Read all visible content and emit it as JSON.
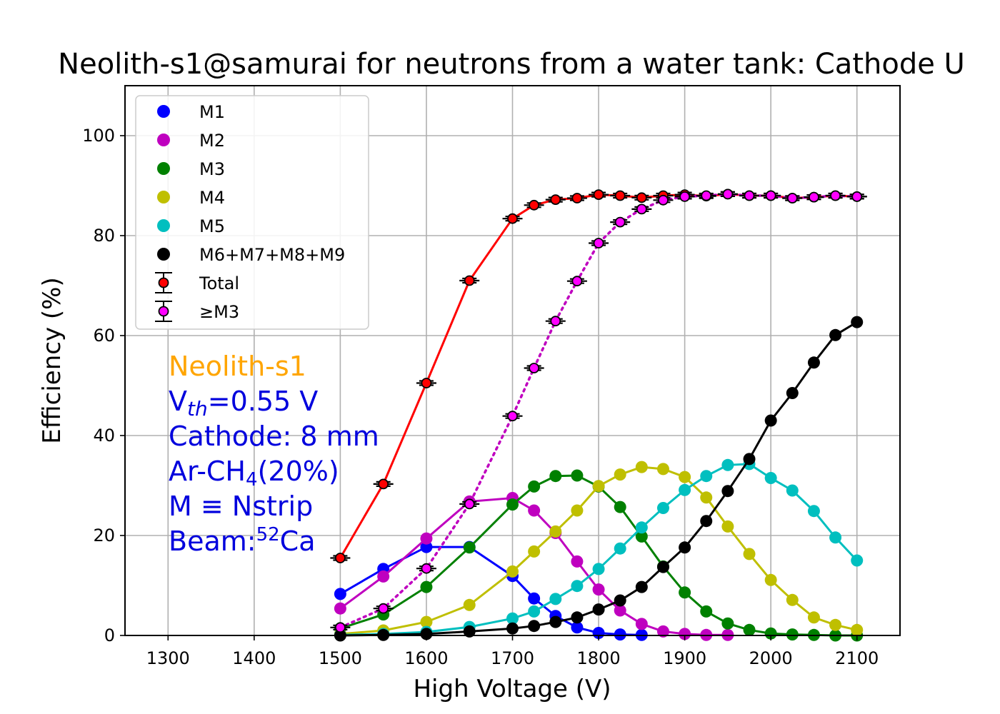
{
  "chart_data": {
    "type": "line",
    "title": "Neolith-s1@samurai for neutrons from a water tank: Cathode U",
    "xlabel": "High Voltage (V)",
    "ylabel": "Efficiency (%)",
    "xlim": [
      1250,
      2150
    ],
    "ylim": [
      0,
      110
    ],
    "x_ticks": [
      1300,
      1400,
      1500,
      1600,
      1700,
      1800,
      1900,
      2000,
      2100
    ],
    "y_ticks": [
      0,
      20,
      40,
      60,
      80,
      100
    ],
    "grid": true,
    "legend_position": "top-left",
    "series": [
      {
        "name": "M1",
        "color": "#0000ff",
        "marker": "circle",
        "line": "solid",
        "x": [
          1500,
          1550,
          1600,
          1650,
          1700,
          1725,
          1750,
          1775,
          1800,
          1825,
          1850
        ],
        "y": [
          8.3,
          13.3,
          17.7,
          17.7,
          11.9,
          7.4,
          3.9,
          1.6,
          0.5,
          0.2,
          0.1
        ]
      },
      {
        "name": "M2",
        "color": "#bf00bf",
        "marker": "circle",
        "line": "solid",
        "x": [
          1500,
          1550,
          1600,
          1650,
          1700,
          1725,
          1750,
          1775,
          1800,
          1825,
          1850,
          1875,
          1900,
          1925,
          1950
        ],
        "y": [
          5.4,
          11.8,
          19.4,
          26.8,
          27.5,
          25.0,
          20.5,
          14.8,
          9.2,
          5.0,
          2.3,
          0.8,
          0.3,
          0.1,
          0.1
        ]
      },
      {
        "name": "M3",
        "color": "#008000",
        "marker": "circle",
        "line": "solid",
        "x": [
          1500,
          1550,
          1600,
          1650,
          1700,
          1725,
          1750,
          1775,
          1800,
          1825,
          1850,
          1875,
          1900,
          1925,
          1950,
          1975,
          2000,
          2025,
          2050,
          2075,
          2100
        ],
        "y": [
          1.4,
          4.2,
          9.7,
          17.6,
          26.2,
          29.8,
          31.9,
          32.0,
          29.8,
          25.7,
          19.8,
          13.8,
          8.6,
          4.8,
          2.4,
          1.1,
          0.4,
          0.2,
          0.1,
          0.0,
          0.0
        ]
      },
      {
        "name": "M4",
        "color": "#bfbf00",
        "marker": "circle",
        "line": "solid",
        "x": [
          1500,
          1550,
          1600,
          1650,
          1700,
          1725,
          1750,
          1775,
          1800,
          1825,
          1850,
          1875,
          1900,
          1925,
          1950,
          1975,
          2000,
          2025,
          2050,
          2075,
          2100
        ],
        "y": [
          0.3,
          1.0,
          2.7,
          6.1,
          12.8,
          16.8,
          20.8,
          25.0,
          29.9,
          32.2,
          33.7,
          33.3,
          31.7,
          27.6,
          21.8,
          16.3,
          11.1,
          7.1,
          3.6,
          2.1,
          1.1
        ]
      },
      {
        "name": "M5",
        "color": "#00bfbf",
        "marker": "circle",
        "line": "solid",
        "x": [
          1500,
          1550,
          1600,
          1650,
          1700,
          1725,
          1750,
          1775,
          1800,
          1825,
          1850,
          1875,
          1900,
          1925,
          1950,
          1975,
          2000,
          2025,
          2050,
          2075,
          2100
        ],
        "y": [
          0.1,
          0.3,
          0.7,
          1.7,
          3.4,
          4.8,
          7.3,
          9.9,
          13.3,
          17.4,
          21.6,
          25.5,
          29.1,
          31.9,
          34.1,
          34.3,
          31.5,
          29.0,
          24.9,
          19.6,
          15.0
        ]
      },
      {
        "name": "M6+M7+M8+M9",
        "color": "#000000",
        "marker": "circle",
        "line": "solid",
        "x": [
          1500,
          1550,
          1600,
          1650,
          1700,
          1725,
          1750,
          1775,
          1800,
          1825,
          1850,
          1875,
          1900,
          1925,
          1950,
          1975,
          2000,
          2025,
          2050,
          2075,
          2100
        ],
        "y": [
          0.0,
          0.1,
          0.3,
          0.8,
          1.4,
          1.9,
          2.7,
          3.6,
          5.2,
          7.0,
          9.7,
          13.7,
          17.6,
          22.9,
          28.9,
          35.3,
          43.0,
          48.5,
          54.6,
          60.1,
          62.7
        ]
      },
      {
        "name": "Total",
        "color": "#ff0000",
        "edgecolor": "#000000",
        "marker": "circle",
        "line": "solid",
        "errorbars": true,
        "x": [
          1500,
          1550,
          1600,
          1650,
          1700,
          1725,
          1750,
          1775,
          1800,
          1825,
          1850,
          1875,
          1900,
          1925,
          1950,
          1975,
          2000,
          2025,
          2050,
          2075,
          2100
        ],
        "y": [
          15.5,
          30.3,
          50.5,
          71.0,
          83.4,
          86.1,
          87.2,
          87.5,
          88.2,
          88.0,
          87.6,
          88.0,
          88.2,
          87.9,
          88.3,
          88.0,
          88.0,
          87.5,
          87.7,
          88.0,
          87.8
        ]
      },
      {
        "name": "≥M3",
        "color": "#ff00ff",
        "linecolor": "#bf00bf",
        "edgecolor": "#000000",
        "marker": "circle",
        "line": "dotted",
        "errorbars": true,
        "x": [
          1500,
          1550,
          1600,
          1650,
          1700,
          1725,
          1750,
          1775,
          1800,
          1825,
          1850,
          1875,
          1900,
          1925,
          1950,
          1975,
          2000,
          2025,
          2050,
          2075,
          2100
        ],
        "y": [
          1.6,
          5.4,
          13.4,
          26.3,
          43.9,
          53.5,
          62.9,
          70.9,
          78.5,
          82.7,
          85.3,
          87.1,
          87.8,
          88.0,
          88.3,
          88.0,
          88.0,
          87.5,
          87.7,
          88.0,
          87.8
        ]
      }
    ],
    "annotation": {
      "line1": "Neolith-s1",
      "line1_color": "#ffa500",
      "color": "#0000dd",
      "vth_prefix": "V",
      "vth_sub": "th",
      "vth_suffix": "=0.55 V",
      "cathode": "Cathode: 8 mm",
      "gas_prefix": "Ar-CH",
      "gas_sub": "4",
      "gas_suffix": "(20%)",
      "mdef": "M ≡ Nstrip",
      "beam_prefix": "Beam:",
      "beam_sup": "52",
      "beam_suffix": "Ca"
    }
  }
}
